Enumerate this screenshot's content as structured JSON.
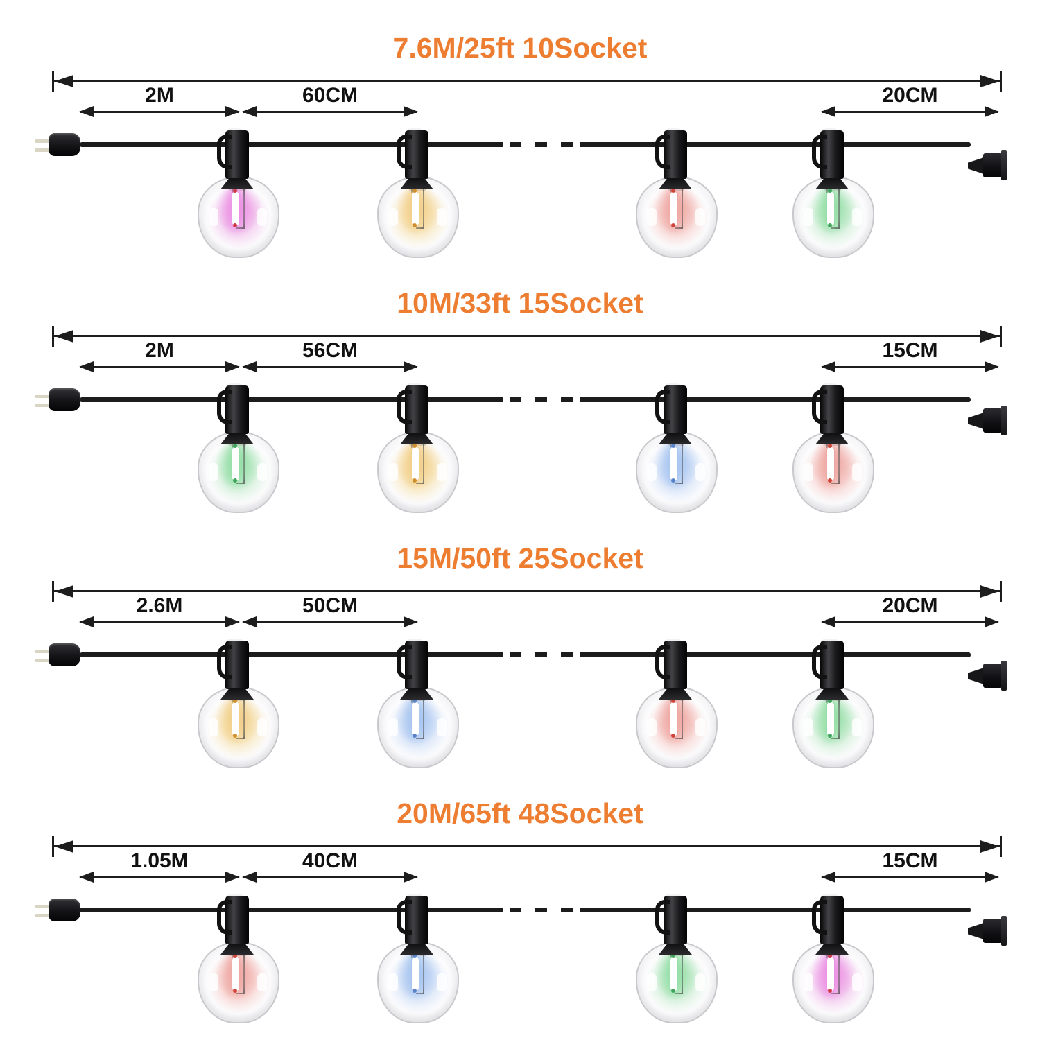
{
  "page": {
    "accent_color": "#ED7D31",
    "label_color": "#111111",
    "wire_color": "#1c1c1c",
    "background": "#ffffff"
  },
  "variants": [
    {
      "title": "7.6M/25ft 10Socket",
      "lead": "2M",
      "spacing": "60CM",
      "tail": "20CM",
      "bulbs": [
        "magenta",
        "warm",
        "red",
        "green"
      ]
    },
    {
      "title": "10M/33ft 15Socket",
      "lead": "2M",
      "spacing": "56CM",
      "tail": "15CM",
      "bulbs": [
        "green",
        "warm",
        "blue",
        "red"
      ]
    },
    {
      "title": "15M/50ft 25Socket",
      "lead": "2.6M",
      "spacing": "50CM",
      "tail": "20CM",
      "bulbs": [
        "warm",
        "blue",
        "red",
        "green"
      ]
    },
    {
      "title": "20M/65ft 48Socket",
      "lead": "1.05M",
      "spacing": "40CM",
      "tail": "15CM",
      "bulbs": [
        "red",
        "blue",
        "green",
        "magenta"
      ]
    }
  ],
  "bulb_palette": {
    "magenta": {
      "haze": "#f3cdef",
      "glow": "#ec93e4",
      "tip": "#cf3a46"
    },
    "warm": {
      "haze": "#f8e9c4",
      "glow": "#f2d08c",
      "tip": "#d08f2f"
    },
    "red": {
      "haze": "#f7d6d3",
      "glow": "#efa9a4",
      "tip": "#d0453a"
    },
    "green": {
      "haze": "#d5f0db",
      "glow": "#96dfa8",
      "tip": "#41a35d"
    },
    "blue": {
      "haze": "#d9e5f8",
      "glow": "#a9c6f0",
      "tip": "#5a82c8"
    }
  }
}
